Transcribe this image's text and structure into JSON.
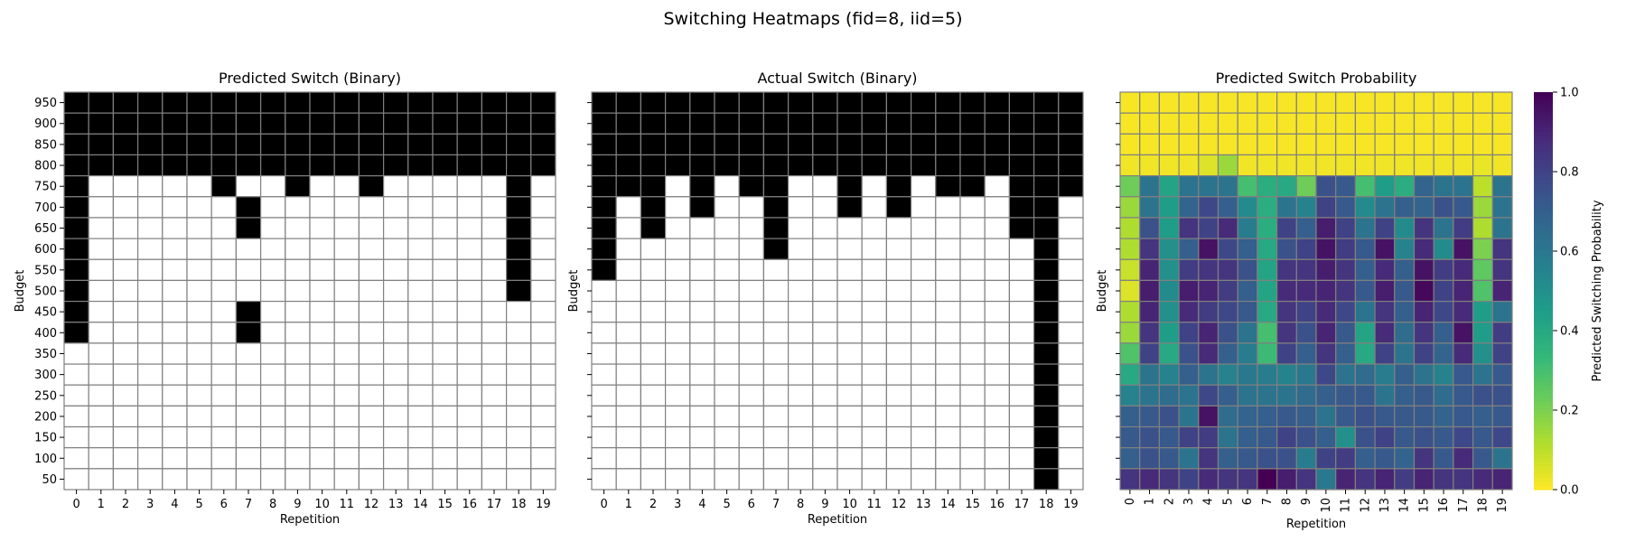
{
  "figure": {
    "title": "Switching Heatmaps (fid=8, iid=5)"
  },
  "chart_data": [
    {
      "type": "heatmap",
      "title": "Predicted Switch (Binary)",
      "xlabel": "Repetition",
      "ylabel": "Budget",
      "x": [
        0,
        1,
        2,
        3,
        4,
        5,
        6,
        7,
        8,
        9,
        10,
        11,
        12,
        13,
        14,
        15,
        16,
        17,
        18,
        19
      ],
      "y": [
        950,
        900,
        850,
        800,
        750,
        700,
        650,
        600,
        550,
        500,
        450,
        400,
        350,
        300,
        250,
        200,
        150,
        100,
        50
      ],
      "value_encoding": "1 = black (switch), 0 = white",
      "values": [
        [
          1,
          1,
          1,
          1,
          1,
          1,
          1,
          1,
          1,
          1,
          1,
          1,
          1,
          1,
          1,
          1,
          1,
          1,
          1,
          1
        ],
        [
          1,
          1,
          1,
          1,
          1,
          1,
          1,
          1,
          1,
          1,
          1,
          1,
          1,
          1,
          1,
          1,
          1,
          1,
          1,
          1
        ],
        [
          1,
          1,
          1,
          1,
          1,
          1,
          1,
          1,
          1,
          1,
          1,
          1,
          1,
          1,
          1,
          1,
          1,
          1,
          1,
          1
        ],
        [
          1,
          1,
          1,
          1,
          1,
          1,
          1,
          1,
          1,
          1,
          1,
          1,
          1,
          1,
          1,
          1,
          1,
          1,
          1,
          1
        ],
        [
          1,
          0,
          0,
          0,
          0,
          0,
          1,
          0,
          0,
          1,
          0,
          0,
          1,
          0,
          0,
          0,
          0,
          0,
          1,
          0
        ],
        [
          1,
          0,
          0,
          0,
          0,
          0,
          0,
          1,
          0,
          0,
          0,
          0,
          0,
          0,
          0,
          0,
          0,
          0,
          1,
          0
        ],
        [
          1,
          0,
          0,
          0,
          0,
          0,
          0,
          1,
          0,
          0,
          0,
          0,
          0,
          0,
          0,
          0,
          0,
          0,
          1,
          0
        ],
        [
          1,
          0,
          0,
          0,
          0,
          0,
          0,
          0,
          0,
          0,
          0,
          0,
          0,
          0,
          0,
          0,
          0,
          0,
          1,
          0
        ],
        [
          1,
          0,
          0,
          0,
          0,
          0,
          0,
          0,
          0,
          0,
          0,
          0,
          0,
          0,
          0,
          0,
          0,
          0,
          1,
          0
        ],
        [
          1,
          0,
          0,
          0,
          0,
          0,
          0,
          0,
          0,
          0,
          0,
          0,
          0,
          0,
          0,
          0,
          0,
          0,
          1,
          0
        ],
        [
          1,
          0,
          0,
          0,
          0,
          0,
          0,
          1,
          0,
          0,
          0,
          0,
          0,
          0,
          0,
          0,
          0,
          0,
          0,
          0
        ],
        [
          1,
          0,
          0,
          0,
          0,
          0,
          0,
          1,
          0,
          0,
          0,
          0,
          0,
          0,
          0,
          0,
          0,
          0,
          0,
          0
        ],
        [
          0,
          0,
          0,
          0,
          0,
          0,
          0,
          0,
          0,
          0,
          0,
          0,
          0,
          0,
          0,
          0,
          0,
          0,
          0,
          0
        ],
        [
          0,
          0,
          0,
          0,
          0,
          0,
          0,
          0,
          0,
          0,
          0,
          0,
          0,
          0,
          0,
          0,
          0,
          0,
          0,
          0
        ],
        [
          0,
          0,
          0,
          0,
          0,
          0,
          0,
          0,
          0,
          0,
          0,
          0,
          0,
          0,
          0,
          0,
          0,
          0,
          0,
          0
        ],
        [
          0,
          0,
          0,
          0,
          0,
          0,
          0,
          0,
          0,
          0,
          0,
          0,
          0,
          0,
          0,
          0,
          0,
          0,
          0,
          0
        ],
        [
          0,
          0,
          0,
          0,
          0,
          0,
          0,
          0,
          0,
          0,
          0,
          0,
          0,
          0,
          0,
          0,
          0,
          0,
          0,
          0
        ],
        [
          0,
          0,
          0,
          0,
          0,
          0,
          0,
          0,
          0,
          0,
          0,
          0,
          0,
          0,
          0,
          0,
          0,
          0,
          0,
          0
        ],
        [
          0,
          0,
          0,
          0,
          0,
          0,
          0,
          0,
          0,
          0,
          0,
          0,
          0,
          0,
          0,
          0,
          0,
          0,
          0,
          0
        ]
      ]
    },
    {
      "type": "heatmap",
      "title": "Actual Switch (Binary)",
      "xlabel": "Repetition",
      "ylabel": "Budget",
      "x": [
        0,
        1,
        2,
        3,
        4,
        5,
        6,
        7,
        8,
        9,
        10,
        11,
        12,
        13,
        14,
        15,
        16,
        17,
        18,
        19
      ],
      "y": [
        950,
        900,
        850,
        800,
        750,
        700,
        650,
        600,
        550,
        500,
        450,
        400,
        350,
        300,
        250,
        200,
        150,
        100,
        50
      ],
      "value_encoding": "1 = black (switch), 0 = white",
      "values": [
        [
          1,
          1,
          1,
          1,
          1,
          1,
          1,
          1,
          1,
          1,
          1,
          1,
          1,
          1,
          1,
          1,
          1,
          1,
          1,
          1
        ],
        [
          1,
          1,
          1,
          1,
          1,
          1,
          1,
          1,
          1,
          1,
          1,
          1,
          1,
          1,
          1,
          1,
          1,
          1,
          1,
          1
        ],
        [
          1,
          1,
          1,
          1,
          1,
          1,
          1,
          1,
          1,
          1,
          1,
          1,
          1,
          1,
          1,
          1,
          1,
          1,
          1,
          1
        ],
        [
          1,
          1,
          1,
          1,
          1,
          1,
          1,
          1,
          1,
          1,
          1,
          1,
          1,
          1,
          1,
          1,
          1,
          1,
          1,
          1
        ],
        [
          1,
          1,
          1,
          0,
          1,
          0,
          1,
          1,
          0,
          0,
          1,
          0,
          1,
          0,
          1,
          1,
          0,
          1,
          1,
          1
        ],
        [
          1,
          0,
          1,
          0,
          1,
          0,
          0,
          1,
          0,
          0,
          1,
          0,
          1,
          0,
          0,
          0,
          0,
          1,
          1,
          0
        ],
        [
          1,
          0,
          1,
          0,
          0,
          0,
          0,
          1,
          0,
          0,
          0,
          0,
          0,
          0,
          0,
          0,
          0,
          1,
          1,
          0
        ],
        [
          1,
          0,
          0,
          0,
          0,
          0,
          0,
          1,
          0,
          0,
          0,
          0,
          0,
          0,
          0,
          0,
          0,
          0,
          1,
          0
        ],
        [
          1,
          0,
          0,
          0,
          0,
          0,
          0,
          0,
          0,
          0,
          0,
          0,
          0,
          0,
          0,
          0,
          0,
          0,
          1,
          0
        ],
        [
          0,
          0,
          0,
          0,
          0,
          0,
          0,
          0,
          0,
          0,
          0,
          0,
          0,
          0,
          0,
          0,
          0,
          0,
          1,
          0
        ],
        [
          0,
          0,
          0,
          0,
          0,
          0,
          0,
          0,
          0,
          0,
          0,
          0,
          0,
          0,
          0,
          0,
          0,
          0,
          1,
          0
        ],
        [
          0,
          0,
          0,
          0,
          0,
          0,
          0,
          0,
          0,
          0,
          0,
          0,
          0,
          0,
          0,
          0,
          0,
          0,
          1,
          0
        ],
        [
          0,
          0,
          0,
          0,
          0,
          0,
          0,
          0,
          0,
          0,
          0,
          0,
          0,
          0,
          0,
          0,
          0,
          0,
          1,
          0
        ],
        [
          0,
          0,
          0,
          0,
          0,
          0,
          0,
          0,
          0,
          0,
          0,
          0,
          0,
          0,
          0,
          0,
          0,
          0,
          1,
          0
        ],
        [
          0,
          0,
          0,
          0,
          0,
          0,
          0,
          0,
          0,
          0,
          0,
          0,
          0,
          0,
          0,
          0,
          0,
          0,
          1,
          0
        ],
        [
          0,
          0,
          0,
          0,
          0,
          0,
          0,
          0,
          0,
          0,
          0,
          0,
          0,
          0,
          0,
          0,
          0,
          0,
          1,
          0
        ],
        [
          0,
          0,
          0,
          0,
          0,
          0,
          0,
          0,
          0,
          0,
          0,
          0,
          0,
          0,
          0,
          0,
          0,
          0,
          1,
          0
        ],
        [
          0,
          0,
          0,
          0,
          0,
          0,
          0,
          0,
          0,
          0,
          0,
          0,
          0,
          0,
          0,
          0,
          0,
          0,
          1,
          0
        ],
        [
          0,
          0,
          0,
          0,
          0,
          0,
          0,
          0,
          0,
          0,
          0,
          0,
          0,
          0,
          0,
          0,
          0,
          0,
          1,
          0
        ]
      ]
    },
    {
      "type": "heatmap",
      "title": "Predicted Switch Probability",
      "xlabel": "Repetition",
      "ylabel": "Budget",
      "x": [
        0,
        1,
        2,
        3,
        4,
        5,
        6,
        7,
        8,
        9,
        10,
        11,
        12,
        13,
        14,
        15,
        16,
        17,
        18,
        19
      ],
      "y": [
        950,
        900,
        850,
        800,
        750,
        700,
        650,
        600,
        550,
        500,
        450,
        400,
        350,
        300,
        250,
        200,
        150,
        100,
        50
      ],
      "colormap": "viridis_r",
      "colorbar": {
        "label": "Predicted Switching Probability",
        "range": [
          0.0,
          1.0
        ],
        "ticks": [
          "0.0",
          "0.2",
          "0.4",
          "0.6",
          "0.8",
          "1.0"
        ]
      },
      "values": [
        [
          0.01,
          0.01,
          0.01,
          0.01,
          0.01,
          0.01,
          0.01,
          0.01,
          0.01,
          0.01,
          0.01,
          0.01,
          0.01,
          0.01,
          0.01,
          0.01,
          0.01,
          0.01,
          0.01,
          0.01
        ],
        [
          0.01,
          0.01,
          0.01,
          0.01,
          0.01,
          0.01,
          0.01,
          0.01,
          0.01,
          0.01,
          0.01,
          0.01,
          0.01,
          0.01,
          0.01,
          0.01,
          0.01,
          0.01,
          0.01,
          0.01
        ],
        [
          0.01,
          0.01,
          0.01,
          0.01,
          0.01,
          0.01,
          0.01,
          0.01,
          0.01,
          0.01,
          0.01,
          0.01,
          0.01,
          0.01,
          0.01,
          0.01,
          0.01,
          0.01,
          0.01,
          0.01
        ],
        [
          0.02,
          0.02,
          0.02,
          0.02,
          0.05,
          0.15,
          0.02,
          0.02,
          0.02,
          0.02,
          0.02,
          0.02,
          0.02,
          0.02,
          0.02,
          0.02,
          0.02,
          0.02,
          0.03,
          0.02
        ],
        [
          0.22,
          0.62,
          0.42,
          0.62,
          0.62,
          0.62,
          0.3,
          0.38,
          0.4,
          0.22,
          0.75,
          0.72,
          0.3,
          0.45,
          0.38,
          0.68,
          0.62,
          0.62,
          0.1,
          0.62
        ],
        [
          0.15,
          0.62,
          0.45,
          0.68,
          0.78,
          0.7,
          0.52,
          0.38,
          0.62,
          0.55,
          0.8,
          0.72,
          0.52,
          0.62,
          0.7,
          0.68,
          0.75,
          0.72,
          0.15,
          0.62
        ],
        [
          0.12,
          0.75,
          0.45,
          0.85,
          0.8,
          0.88,
          0.58,
          0.38,
          0.8,
          0.7,
          0.92,
          0.8,
          0.62,
          0.8,
          0.52,
          0.85,
          0.62,
          0.82,
          0.12,
          0.62
        ],
        [
          0.12,
          0.85,
          0.5,
          0.7,
          0.95,
          0.78,
          0.7,
          0.4,
          0.75,
          0.8,
          0.95,
          0.82,
          0.72,
          0.95,
          0.55,
          0.88,
          0.52,
          0.95,
          0.2,
          0.85
        ],
        [
          0.08,
          0.9,
          0.5,
          0.82,
          0.85,
          0.85,
          0.75,
          0.42,
          0.85,
          0.85,
          0.92,
          0.85,
          0.7,
          0.88,
          0.7,
          0.95,
          0.82,
          0.88,
          0.25,
          0.85
        ],
        [
          0.05,
          0.92,
          0.52,
          0.92,
          0.9,
          0.82,
          0.7,
          0.42,
          0.88,
          0.88,
          0.9,
          0.85,
          0.72,
          0.92,
          0.72,
          0.98,
          0.8,
          0.9,
          0.28,
          0.9
        ],
        [
          0.12,
          0.9,
          0.5,
          0.88,
          0.82,
          0.78,
          0.72,
          0.4,
          0.85,
          0.8,
          0.88,
          0.78,
          0.62,
          0.85,
          0.7,
          0.9,
          0.78,
          0.88,
          0.45,
          0.62
        ],
        [
          0.15,
          0.85,
          0.45,
          0.8,
          0.9,
          0.75,
          0.62,
          0.3,
          0.85,
          0.75,
          0.9,
          0.72,
          0.42,
          0.88,
          0.65,
          0.85,
          0.7,
          0.95,
          0.45,
          0.82
        ],
        [
          0.28,
          0.8,
          0.4,
          0.75,
          0.88,
          0.7,
          0.58,
          0.32,
          0.8,
          0.7,
          0.85,
          0.7,
          0.4,
          0.8,
          0.62,
          0.8,
          0.68,
          0.88,
          0.5,
          0.8
        ],
        [
          0.4,
          0.62,
          0.55,
          0.7,
          0.62,
          0.55,
          0.6,
          0.58,
          0.55,
          0.6,
          0.78,
          0.62,
          0.65,
          0.58,
          0.7,
          0.62,
          0.55,
          0.72,
          0.62,
          0.72
        ],
        [
          0.55,
          0.62,
          0.65,
          0.62,
          0.78,
          0.7,
          0.62,
          0.62,
          0.62,
          0.65,
          0.7,
          0.72,
          0.72,
          0.62,
          0.7,
          0.72,
          0.65,
          0.72,
          0.75,
          0.75
        ],
        [
          0.7,
          0.72,
          0.75,
          0.62,
          0.95,
          0.65,
          0.68,
          0.7,
          0.72,
          0.7,
          0.62,
          0.72,
          0.75,
          0.72,
          0.72,
          0.72,
          0.68,
          0.72,
          0.7,
          0.72
        ],
        [
          0.72,
          0.75,
          0.72,
          0.8,
          0.82,
          0.62,
          0.7,
          0.72,
          0.8,
          0.75,
          0.7,
          0.5,
          0.75,
          0.8,
          0.72,
          0.75,
          0.72,
          0.78,
          0.72,
          0.78
        ],
        [
          0.7,
          0.75,
          0.72,
          0.62,
          0.85,
          0.7,
          0.72,
          0.75,
          0.75,
          0.58,
          0.8,
          0.82,
          0.7,
          0.72,
          0.68,
          0.85,
          0.72,
          0.88,
          0.72,
          0.62
        ],
        [
          0.85,
          0.88,
          0.85,
          0.8,
          0.88,
          0.85,
          0.85,
          1.0,
          0.92,
          0.85,
          0.6,
          0.9,
          0.85,
          0.9,
          0.82,
          0.9,
          0.85,
          0.85,
          0.88,
          0.9
        ]
      ]
    }
  ]
}
